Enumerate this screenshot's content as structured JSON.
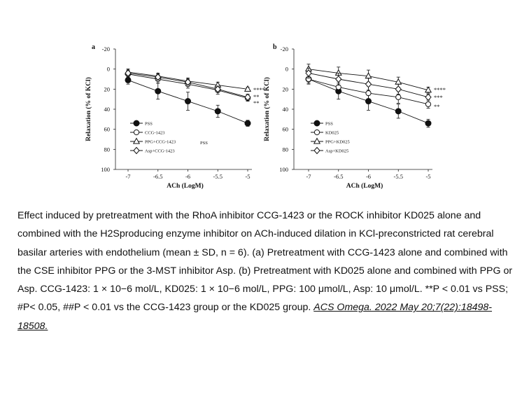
{
  "chart_data": [
    {
      "type": "line",
      "panel_label": "a",
      "xlabel": "ACh (LogM)",
      "ylabel": "Relaxation (% of KCl)",
      "x": [
        -7,
        -6.5,
        -6,
        -5.5,
        -5
      ],
      "x_tick_labels": [
        "-7",
        "-6.5",
        "-6",
        "-5.5",
        "-5"
      ],
      "y_tick_labels": [
        "-20",
        "0",
        "20",
        "40",
        "60",
        "80",
        "100"
      ],
      "ylim": [
        -20,
        100
      ],
      "y_inverted": true,
      "legend_position": "lower-left",
      "series": [
        {
          "name": "PSS",
          "marker": "filled-circle",
          "values": [
            11,
            22,
            32,
            42,
            54
          ],
          "error": [
            4,
            8,
            9,
            6,
            3
          ]
        },
        {
          "name": "CCG-1423",
          "marker": "open-circle",
          "values": [
            5,
            10,
            15,
            21,
            29
          ],
          "error": [
            3,
            4,
            4,
            4,
            3
          ]
        },
        {
          "name": "PPG+CCG-1423",
          "marker": "open-triangle",
          "values": [
            3,
            7,
            12,
            16,
            20
          ],
          "error": [
            3,
            3,
            3,
            3,
            2
          ]
        },
        {
          "name": "Asp+CCG-1423",
          "marker": "open-diamond",
          "values": [
            4,
            8,
            13,
            20,
            28
          ],
          "error": [
            3,
            3,
            3,
            3,
            3
          ]
        }
      ],
      "annotations": [
        "****",
        "**",
        "**"
      ],
      "extra_text": "PSS"
    },
    {
      "type": "line",
      "panel_label": "b",
      "xlabel": "ACh (LogM)",
      "ylabel": "Relaxation (% of KCl)",
      "x": [
        -7,
        -6.5,
        -6,
        -5.5,
        -5
      ],
      "x_tick_labels": [
        "-7",
        "-6.5",
        "-6",
        "-5.5",
        "-5"
      ],
      "y_tick_labels": [
        "-20",
        "0",
        "20",
        "40",
        "60",
        "80",
        "100"
      ],
      "ylim": [
        -20,
        100
      ],
      "y_inverted": true,
      "legend_position": "lower-left",
      "series": [
        {
          "name": "PSS",
          "marker": "filled-circle",
          "values": [
            10,
            22,
            32,
            42,
            54
          ],
          "error": [
            4,
            8,
            9,
            7,
            4
          ]
        },
        {
          "name": "KD025",
          "marker": "open-circle",
          "values": [
            10,
            18,
            24,
            28,
            35
          ],
          "error": [
            5,
            6,
            7,
            6,
            4
          ]
        },
        {
          "name": "PPG+KD025",
          "marker": "open-triangle",
          "values": [
            0,
            4,
            7,
            13,
            21
          ],
          "error": [
            5,
            6,
            6,
            5,
            3
          ]
        },
        {
          "name": "Asp+KD025",
          "marker": "open-diamond",
          "values": [
            4,
            10,
            15,
            20,
            28
          ],
          "error": [
            5,
            6,
            6,
            5,
            3
          ]
        }
      ],
      "annotations": [
        "****",
        "***",
        "**"
      ]
    }
  ],
  "caption": {
    "text": "Effect induced by pretreatment with the RhoA inhibitor CCG-1423 or the ROCK inhibitor KD025 alone and combined with the H2Sproducing enzyme inhibitor on ACh-induced dilation in KCl-preconstricted rat cerebral basilar arteries with endothelium (mean ± SD, n = 6). (a) Pretreatment with CCG-1423 alone and combined with the CSE inhibitor PPG or the 3-MST inhibitor Asp. (b) Pretreatment with KD025 alone and combined with PPG or Asp. CCG-1423: 1 × 10−6 mol/L, KD025: 1 × 10−6 mol/L, PPG: 100 μmol/L, Asp: 10 μmol/L. **P < 0.01 vs PSS; #P< 0.05, ##P < 0.01 vs the CCG-1423 group or the KD025 group.",
    "citation": "ACS Omega. 2022 May 20;7(22):18498-18508."
  }
}
